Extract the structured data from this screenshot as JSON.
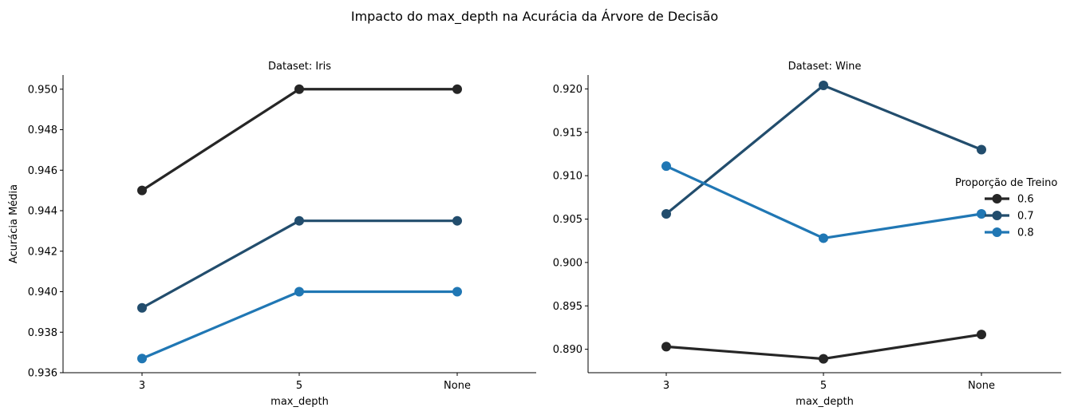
{
  "figure_title": "Impacto do max_depth na Acurácia da Árvore de Decisão",
  "legend": {
    "title": "Proporção de Treino",
    "placement": "right",
    "entries": [
      {
        "label": "0.6",
        "color": "#262626"
      },
      {
        "label": "0.7",
        "color": "#224d6d"
      },
      {
        "label": "0.8",
        "color": "#2077b4"
      }
    ]
  },
  "chart_data": [
    {
      "type": "line",
      "title": "Dataset: Iris",
      "xlabel": "max_depth",
      "ylabel": "Acurácia Média",
      "categories": [
        "3",
        "5",
        "None"
      ],
      "ylim": [
        0.936,
        0.9507
      ],
      "yticks": [
        0.936,
        0.938,
        0.94,
        0.942,
        0.944,
        0.946,
        0.948,
        0.95
      ],
      "ytick_decimals": 3,
      "grid": false,
      "series": [
        {
          "name": "0.6",
          "color": "#262626",
          "values": [
            0.945,
            0.95,
            0.95
          ]
        },
        {
          "name": "0.7",
          "color": "#224d6d",
          "values": [
            0.9392,
            0.9435,
            0.9435
          ]
        },
        {
          "name": "0.8",
          "color": "#2077b4",
          "values": [
            0.9367,
            0.94,
            0.94
          ]
        }
      ]
    },
    {
      "type": "line",
      "title": "Dataset: Wine",
      "xlabel": "max_depth",
      "ylabel": "",
      "categories": [
        "3",
        "5",
        "None"
      ],
      "ylim": [
        0.8873,
        0.9216
      ],
      "yticks": [
        0.89,
        0.895,
        0.9,
        0.905,
        0.91,
        0.915,
        0.92
      ],
      "ytick_decimals": 3,
      "grid": false,
      "series": [
        {
          "name": "0.6",
          "color": "#262626",
          "values": [
            0.8903,
            0.8889,
            0.8917
          ]
        },
        {
          "name": "0.7",
          "color": "#224d6d",
          "values": [
            0.9056,
            0.9204,
            0.913
          ]
        },
        {
          "name": "0.8",
          "color": "#2077b4",
          "values": [
            0.9111,
            0.9028,
            0.9056
          ]
        }
      ]
    }
  ]
}
